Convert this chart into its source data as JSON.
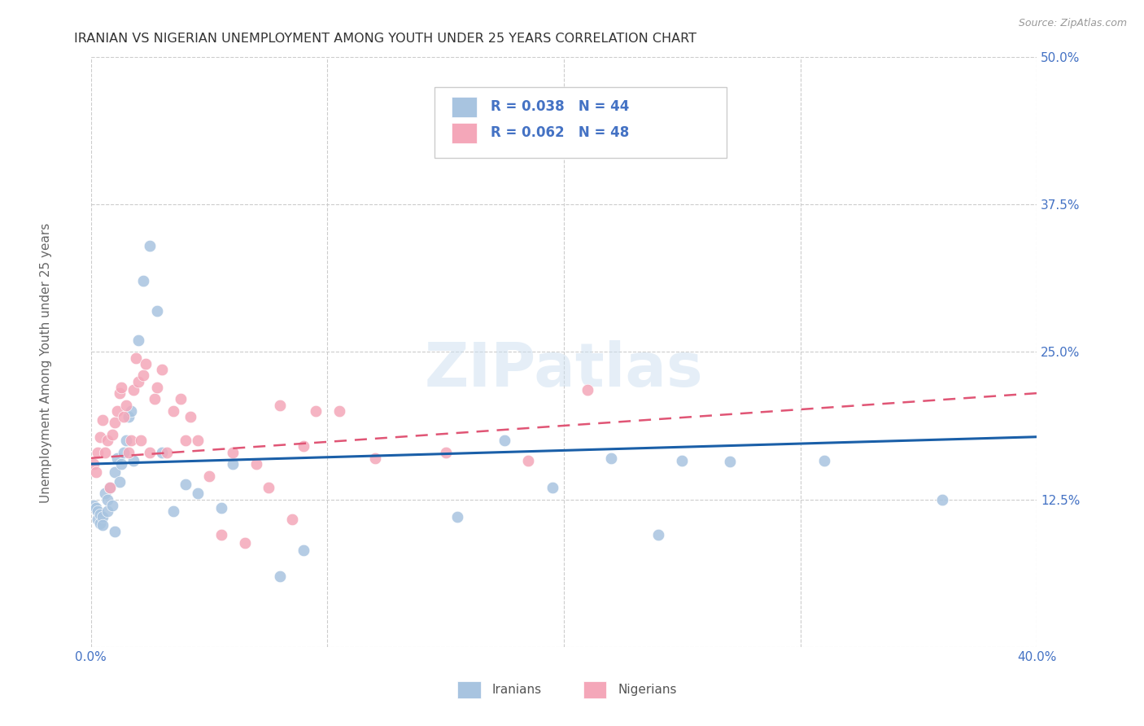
{
  "title": "IRANIAN VS NIGERIAN UNEMPLOYMENT AMONG YOUTH UNDER 25 YEARS CORRELATION CHART",
  "source": "Source: ZipAtlas.com",
  "ylabel": "Unemployment Among Youth under 25 years",
  "xlim": [
    0.0,
    0.4
  ],
  "ylim": [
    0.0,
    0.5
  ],
  "xticks": [
    0.0,
    0.1,
    0.2,
    0.3,
    0.4
  ],
  "xticklabels": [
    "0.0%",
    "",
    "",
    "",
    "40.0%"
  ],
  "yticks": [
    0.0,
    0.125,
    0.25,
    0.375,
    0.5
  ],
  "yticklabels": [
    "",
    "12.5%",
    "25.0%",
    "37.5%",
    "50.0%"
  ],
  "legend1_label": "R = 0.038   N = 44",
  "legend2_label": "R = 0.062   N = 48",
  "legend_bottom1": "Iranians",
  "legend_bottom2": "Nigerians",
  "iran_color": "#a8c4e0",
  "nigeria_color": "#f4a7b9",
  "iran_line_color": "#1a5fa8",
  "nigeria_line_color": "#e05575",
  "background_color": "#ffffff",
  "grid_color": "#cccccc",
  "title_color": "#333333",
  "axis_label_color": "#4472c4",
  "watermark": "ZIPatlas",
  "iran_x": [
    0.001,
    0.002,
    0.003,
    0.003,
    0.004,
    0.004,
    0.005,
    0.005,
    0.006,
    0.007,
    0.007,
    0.008,
    0.009,
    0.01,
    0.01,
    0.011,
    0.012,
    0.013,
    0.014,
    0.015,
    0.016,
    0.017,
    0.018,
    0.02,
    0.022,
    0.025,
    0.028,
    0.03,
    0.035,
    0.04,
    0.045,
    0.055,
    0.06,
    0.08,
    0.09,
    0.155,
    0.175,
    0.195,
    0.22,
    0.24,
    0.25,
    0.27,
    0.31,
    0.36
  ],
  "iran_y": [
    0.12,
    0.118,
    0.115,
    0.108,
    0.112,
    0.105,
    0.11,
    0.103,
    0.13,
    0.125,
    0.115,
    0.135,
    0.12,
    0.148,
    0.098,
    0.16,
    0.14,
    0.155,
    0.165,
    0.175,
    0.195,
    0.2,
    0.158,
    0.26,
    0.31,
    0.34,
    0.285,
    0.165,
    0.115,
    0.138,
    0.13,
    0.118,
    0.155,
    0.06,
    0.082,
    0.11,
    0.175,
    0.135,
    0.16,
    0.095,
    0.158,
    0.157,
    0.158,
    0.125
  ],
  "nigeria_x": [
    0.001,
    0.002,
    0.003,
    0.004,
    0.005,
    0.006,
    0.007,
    0.008,
    0.009,
    0.01,
    0.011,
    0.012,
    0.013,
    0.014,
    0.015,
    0.016,
    0.017,
    0.018,
    0.019,
    0.02,
    0.021,
    0.022,
    0.023,
    0.025,
    0.027,
    0.028,
    0.03,
    0.032,
    0.035,
    0.038,
    0.04,
    0.042,
    0.045,
    0.05,
    0.055,
    0.06,
    0.065,
    0.07,
    0.075,
    0.08,
    0.085,
    0.09,
    0.095,
    0.105,
    0.12,
    0.15,
    0.185,
    0.21
  ],
  "nigeria_y": [
    0.155,
    0.148,
    0.165,
    0.178,
    0.192,
    0.165,
    0.175,
    0.135,
    0.18,
    0.19,
    0.2,
    0.215,
    0.22,
    0.195,
    0.205,
    0.165,
    0.175,
    0.218,
    0.245,
    0.225,
    0.175,
    0.23,
    0.24,
    0.165,
    0.21,
    0.22,
    0.235,
    0.165,
    0.2,
    0.21,
    0.175,
    0.195,
    0.175,
    0.145,
    0.095,
    0.165,
    0.088,
    0.155,
    0.135,
    0.205,
    0.108,
    0.17,
    0.2,
    0.2,
    0.16,
    0.165,
    0.158,
    0.218
  ],
  "iran_trend_x": [
    0.0,
    0.4
  ],
  "iran_trend_y": [
    0.155,
    0.178
  ],
  "nigeria_trend_x": [
    0.0,
    0.4
  ],
  "nigeria_trend_y": [
    0.16,
    0.215
  ]
}
